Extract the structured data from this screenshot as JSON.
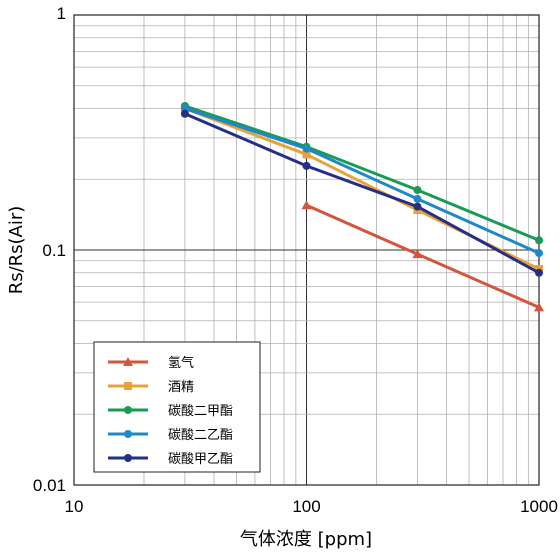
{
  "chart_data": {
    "type": "line",
    "xlabel": "气体浓度 [ppm]",
    "ylabel": "Rs/Rs(Air)",
    "x_scale": "log",
    "y_scale": "log",
    "xlim": [
      10,
      1000
    ],
    "ylim": [
      0.01,
      1
    ],
    "x_ticks": [
      {
        "v": 10,
        "label": "10"
      },
      {
        "v": 100,
        "label": "100"
      },
      {
        "v": 1000,
        "label": "1000"
      }
    ],
    "y_ticks": [
      {
        "v": 1,
        "label": "1"
      },
      {
        "v": 0.1,
        "label": "0.1"
      },
      {
        "v": 0.01,
        "label": "0.01"
      }
    ],
    "grid": true,
    "legend_position": "bottom-left",
    "series": [
      {
        "name": "氢气",
        "color": "#d2553c",
        "marker": "triangle",
        "x": [
          100,
          300,
          1000
        ],
        "y": [
          0.155,
          0.096,
          0.057
        ]
      },
      {
        "name": "酒精",
        "color": "#e8a23a",
        "marker": "square",
        "x": [
          30,
          100,
          300,
          1000
        ],
        "y": [
          0.4,
          0.255,
          0.148,
          0.083
        ]
      },
      {
        "name": "碳酸二甲酯",
        "color": "#1a9a55",
        "marker": "circle",
        "x": [
          30,
          100,
          300,
          1000
        ],
        "y": [
          0.41,
          0.275,
          0.18,
          0.11
        ]
      },
      {
        "name": "碳酸二乙酯",
        "color": "#1f88c8",
        "marker": "circle",
        "x": [
          30,
          100,
          300,
          1000
        ],
        "y": [
          0.4,
          0.27,
          0.165,
          0.097
        ]
      },
      {
        "name": "碳酸甲乙酯",
        "color": "#262f86",
        "marker": "circle",
        "x": [
          30,
          100,
          300,
          1000
        ],
        "y": [
          0.38,
          0.228,
          0.153,
          0.08
        ]
      }
    ]
  }
}
